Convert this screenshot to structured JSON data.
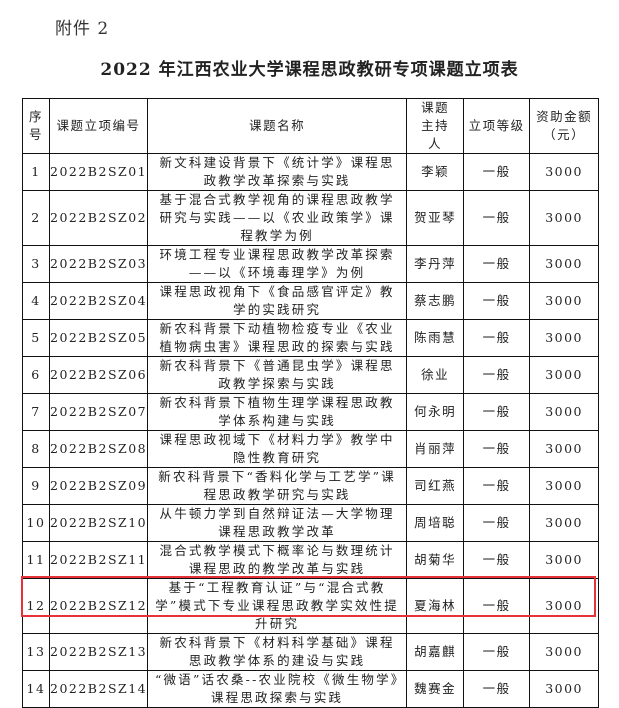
{
  "attachment_label": "附件 2",
  "title": "2022 年江西农业大学课程思政教研专项课题立项表",
  "headers": {
    "seq": "序号",
    "code": "课题立项编号",
    "name": "课题名称",
    "host": "课题主持人",
    "level": "立项等级",
    "amount": "资助金额（元）"
  },
  "highlight_color": "#e8323a",
  "rows": [
    {
      "seq": "1",
      "code": "2022B2SZ01",
      "name": "新文科建设背景下《统计学》课程思政教学改革探索与实践",
      "host": "李颖",
      "level": "一般",
      "amount": "3000"
    },
    {
      "seq": "2",
      "code": "2022B2SZ02",
      "name": "基于混合式教学视角的课程思政教学研究与实践——以《农业政策学》课程教学为例",
      "host": "贺亚琴",
      "level": "一般",
      "amount": "3000"
    },
    {
      "seq": "3",
      "code": "2022B2SZ03",
      "name": "环境工程专业课程思政教学改革探索——以《环境毒理学》为例",
      "host": "李丹萍",
      "level": "一般",
      "amount": "3000"
    },
    {
      "seq": "4",
      "code": "2022B2SZ04",
      "name": "课程思政视角下《食品感官评定》教学的实践研究",
      "host": "蔡志鹏",
      "level": "一般",
      "amount": "3000"
    },
    {
      "seq": "5",
      "code": "2022B2SZ05",
      "name": "新农科背景下动植物检疫专业《农业植物病虫害》课程思政的探索与实践",
      "host": "陈雨慧",
      "level": "一般",
      "amount": "3000"
    },
    {
      "seq": "6",
      "code": "2022B2SZ06",
      "name": "新农科背景下《普通昆虫学》课程思政教学探索与实践",
      "host": "徐业",
      "level": "一般",
      "amount": "3000"
    },
    {
      "seq": "7",
      "code": "2022B2SZ07",
      "name": "新农科背景下植物生理学课程思政教学体系构建与实践",
      "host": "何永明",
      "level": "一般",
      "amount": "3000"
    },
    {
      "seq": "8",
      "code": "2022B2SZ08",
      "name": "课程思政视域下《材料力学》教学中隐性教育研究",
      "host": "肖丽萍",
      "level": "一般",
      "amount": "3000"
    },
    {
      "seq": "9",
      "code": "2022B2SZ09",
      "name": "新农科背景下“香料化学与工艺学”课程思政教学研究与实践",
      "host": "司红燕",
      "level": "一般",
      "amount": "3000"
    },
    {
      "seq": "10",
      "code": "2022B2SZ10",
      "name": "从牛顿力学到自然辩证法—大学物理课程思政教学改革",
      "host": "周培聪",
      "level": "一般",
      "amount": "3000"
    },
    {
      "seq": "11",
      "code": "2022B2SZ11",
      "name": "混合式教学模式下概率论与数理统计课程思政的教学改革与实践",
      "host": "胡菊华",
      "level": "一般",
      "amount": "3000"
    },
    {
      "seq": "12",
      "code": "2022B2SZ12",
      "name": "基于“工程教育认证”与“混合式教学”模式下专业课程思政教学实效性提升研究",
      "host": "夏海林",
      "level": "一般",
      "amount": "3000"
    },
    {
      "seq": "13",
      "code": "2022B2SZ13",
      "name": "新农科背景下《材料科学基础》课程思政教学体系的建设与实践",
      "host": "胡嘉麒",
      "level": "一般",
      "amount": "3000"
    },
    {
      "seq": "14",
      "code": "2022B2SZ14",
      "name": "“微语”话农桑--农业院校《微生物学》课程思政探索与实践",
      "host": "魏赛金",
      "level": "一般",
      "amount": "3000"
    }
  ]
}
